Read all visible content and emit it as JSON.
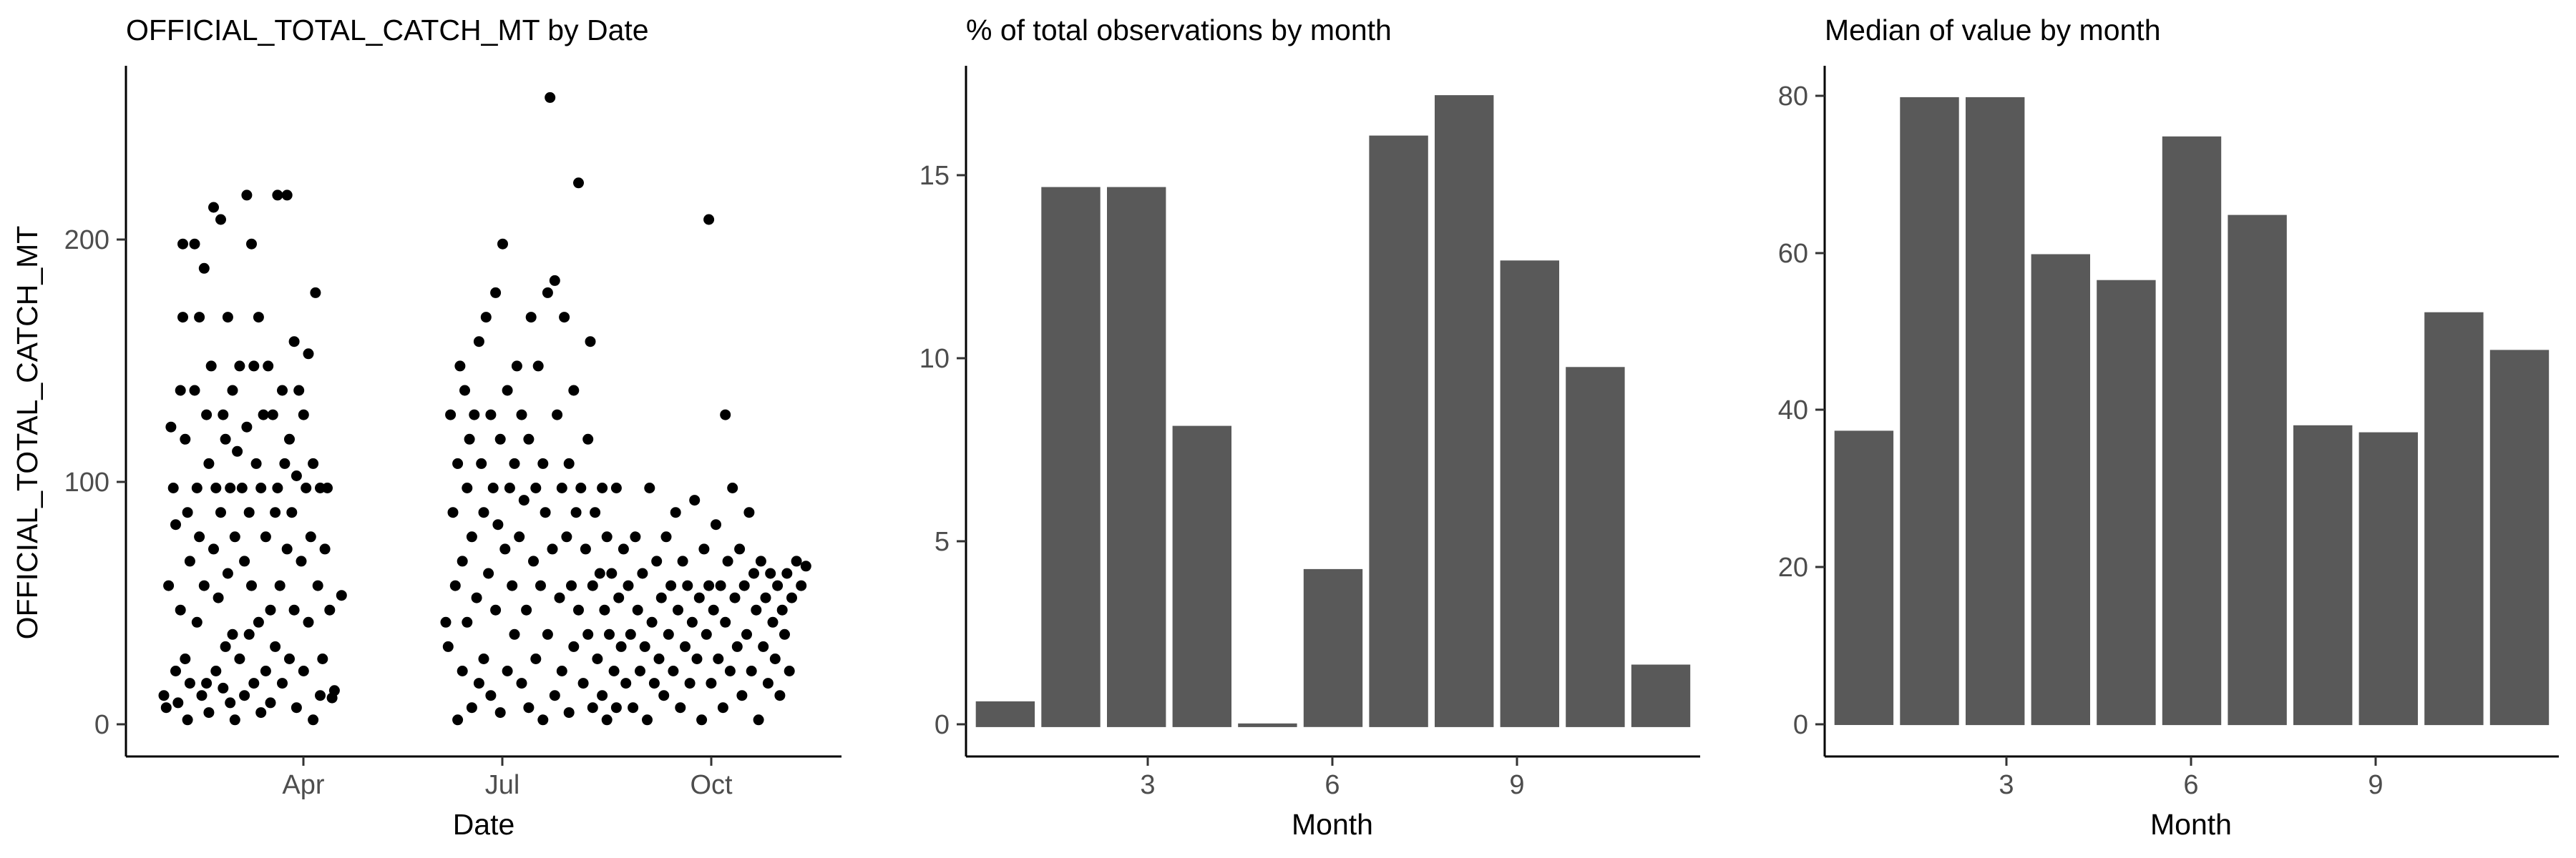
{
  "chart_data": [
    {
      "type": "scatter",
      "title": "OFFICIAL_TOTAL_CATCH_MT by Date",
      "xlabel": "Date",
      "ylabel": "OFFICIAL_TOTAL_CATCH_MT",
      "x_ticks": [
        {
          "label": "Apr",
          "value": "2000-04-01"
        },
        {
          "label": "Jul",
          "value": "2000-07-01"
        },
        {
          "label": "Oct",
          "value": "2000-10-01"
        }
      ],
      "xlim": [
        "2000-02-01",
        "2000-11-29"
      ],
      "y_ticks": [
        0,
        100,
        200
      ],
      "ylim": [
        -10,
        273
      ],
      "grid": false,
      "marker_color": "#000000",
      "points": [
        [
          "2000-02-17",
          15
        ],
        [
          "2000-02-18",
          10
        ],
        [
          "2000-02-19",
          60
        ],
        [
          "2000-02-20",
          125
        ],
        [
          "2000-02-21",
          100
        ],
        [
          "2000-02-22",
          85
        ],
        [
          "2000-02-22",
          25
        ],
        [
          "2000-02-23",
          12
        ],
        [
          "2000-02-24",
          140
        ],
        [
          "2000-02-24",
          50
        ],
        [
          "2000-02-25",
          200
        ],
        [
          "2000-02-25",
          170
        ],
        [
          "2000-02-26",
          120
        ],
        [
          "2000-02-26",
          30
        ],
        [
          "2000-02-27",
          90
        ],
        [
          "2000-02-27",
          5
        ],
        [
          "2000-02-28",
          70
        ],
        [
          "2000-02-28",
          20
        ],
        [
          "2000-03-01",
          200
        ],
        [
          "2000-03-01",
          140
        ],
        [
          "2000-03-02",
          100
        ],
        [
          "2000-03-02",
          45
        ],
        [
          "2000-03-03",
          170
        ],
        [
          "2000-03-03",
          80
        ],
        [
          "2000-03-04",
          15
        ],
        [
          "2000-03-05",
          190
        ],
        [
          "2000-03-05",
          60
        ],
        [
          "2000-03-06",
          130
        ],
        [
          "2000-03-06",
          20
        ],
        [
          "2000-03-07",
          110
        ],
        [
          "2000-03-07",
          8
        ],
        [
          "2000-03-08",
          150
        ],
        [
          "2000-03-09",
          215
        ],
        [
          "2000-03-09",
          75
        ],
        [
          "2000-03-10",
          100
        ],
        [
          "2000-03-10",
          25
        ],
        [
          "2000-03-11",
          55
        ],
        [
          "2000-03-12",
          210
        ],
        [
          "2000-03-12",
          90
        ],
        [
          "2000-03-13",
          130
        ],
        [
          "2000-03-13",
          18
        ],
        [
          "2000-03-14",
          120
        ],
        [
          "2000-03-14",
          35
        ],
        [
          "2000-03-15",
          170
        ],
        [
          "2000-03-15",
          65
        ],
        [
          "2000-03-16",
          100
        ],
        [
          "2000-03-16",
          12
        ],
        [
          "2000-03-17",
          140
        ],
        [
          "2000-03-17",
          40
        ],
        [
          "2000-03-18",
          80
        ],
        [
          "2000-03-18",
          5
        ],
        [
          "2000-03-19",
          115
        ],
        [
          "2000-03-20",
          150
        ],
        [
          "2000-03-20",
          30
        ],
        [
          "2000-03-21",
          100
        ],
        [
          "2000-03-22",
          70
        ],
        [
          "2000-03-22",
          15
        ],
        [
          "2000-03-23",
          220
        ],
        [
          "2000-03-23",
          125
        ],
        [
          "2000-03-24",
          90
        ],
        [
          "2000-03-24",
          40
        ],
        [
          "2000-03-25",
          200
        ],
        [
          "2000-03-25",
          60
        ],
        [
          "2000-03-26",
          150
        ],
        [
          "2000-03-26",
          20
        ],
        [
          "2000-03-27",
          110
        ],
        [
          "2000-03-28",
          170
        ],
        [
          "2000-03-28",
          45
        ],
        [
          "2000-03-29",
          100
        ],
        [
          "2000-03-29",
          8
        ],
        [
          "2000-03-30",
          130
        ],
        [
          "2000-03-31",
          80
        ],
        [
          "2000-03-31",
          25
        ],
        [
          "2000-04-01",
          150
        ],
        [
          "2000-04-02",
          50
        ],
        [
          "2000-04-02",
          12
        ],
        [
          "2000-04-03",
          130
        ],
        [
          "2000-04-04",
          90
        ],
        [
          "2000-04-04",
          35
        ],
        [
          "2000-04-05",
          220
        ],
        [
          "2000-04-05",
          100
        ],
        [
          "2000-04-06",
          60
        ],
        [
          "2000-04-07",
          140
        ],
        [
          "2000-04-07",
          20
        ],
        [
          "2000-04-08",
          110
        ],
        [
          "2000-04-09",
          220
        ],
        [
          "2000-04-09",
          75
        ],
        [
          "2000-04-10",
          120
        ],
        [
          "2000-04-10",
          30
        ],
        [
          "2000-04-11",
          90
        ],
        [
          "2000-04-12",
          160
        ],
        [
          "2000-04-12",
          50
        ],
        [
          "2000-04-13",
          105
        ],
        [
          "2000-04-13",
          10
        ],
        [
          "2000-04-14",
          140
        ],
        [
          "2000-04-15",
          70
        ],
        [
          "2000-04-16",
          130
        ],
        [
          "2000-04-16",
          25
        ],
        [
          "2000-04-17",
          100
        ],
        [
          "2000-04-18",
          155
        ],
        [
          "2000-04-18",
          45
        ],
        [
          "2000-04-19",
          80
        ],
        [
          "2000-04-20",
          110
        ],
        [
          "2000-04-20",
          5
        ],
        [
          "2000-04-21",
          180
        ],
        [
          "2000-04-22",
          60
        ],
        [
          "2000-04-23",
          100
        ],
        [
          "2000-04-23",
          15
        ],
        [
          "2000-04-24",
          30
        ],
        [
          "2000-04-25",
          75
        ],
        [
          "2000-04-26",
          100
        ],
        [
          "2000-04-27",
          50
        ],
        [
          "2000-04-28",
          14
        ],
        [
          "2000-04-29",
          17
        ],
        [
          "2000-05-02",
          56
        ],
        [
          "2000-06-15",
          45
        ],
        [
          "2000-06-16",
          35
        ],
        [
          "2000-06-17",
          130
        ],
        [
          "2000-06-18",
          90
        ],
        [
          "2000-06-19",
          60
        ],
        [
          "2000-06-20",
          110
        ],
        [
          "2000-06-20",
          5
        ],
        [
          "2000-06-21",
          150
        ],
        [
          "2000-06-22",
          70
        ],
        [
          "2000-06-22",
          25
        ],
        [
          "2000-06-23",
          140
        ],
        [
          "2000-06-24",
          100
        ],
        [
          "2000-06-24",
          45
        ],
        [
          "2000-06-25",
          120
        ],
        [
          "2000-06-26",
          80
        ],
        [
          "2000-06-26",
          10
        ],
        [
          "2000-06-27",
          130
        ],
        [
          "2000-06-28",
          55
        ],
        [
          "2000-06-29",
          160
        ],
        [
          "2000-06-29",
          20
        ],
        [
          "2000-06-30",
          110
        ],
        [
          "2000-07-01",
          90
        ],
        [
          "2000-07-01",
          30
        ],
        [
          "2000-07-02",
          170
        ],
        [
          "2000-07-03",
          65
        ],
        [
          "2000-07-04",
          130
        ],
        [
          "2000-07-04",
          15
        ],
        [
          "2000-07-05",
          100
        ],
        [
          "2000-07-06",
          180
        ],
        [
          "2000-07-06",
          50
        ],
        [
          "2000-07-07",
          85
        ],
        [
          "2000-07-08",
          120
        ],
        [
          "2000-07-08",
          8
        ],
        [
          "2000-07-09",
          200
        ],
        [
          "2000-07-10",
          75
        ],
        [
          "2000-07-11",
          140
        ],
        [
          "2000-07-11",
          25
        ],
        [
          "2000-07-12",
          100
        ],
        [
          "2000-07-13",
          60
        ],
        [
          "2000-07-14",
          110
        ],
        [
          "2000-07-14",
          40
        ],
        [
          "2000-07-15",
          150
        ],
        [
          "2000-07-16",
          80
        ],
        [
          "2000-07-17",
          130
        ],
        [
          "2000-07-17",
          20
        ],
        [
          "2000-07-18",
          95
        ],
        [
          "2000-07-19",
          50
        ],
        [
          "2000-07-20",
          120
        ],
        [
          "2000-07-20",
          10
        ],
        [
          "2000-07-21",
          170
        ],
        [
          "2000-07-22",
          70
        ],
        [
          "2000-07-23",
          100
        ],
        [
          "2000-07-23",
          30
        ],
        [
          "2000-07-24",
          150
        ],
        [
          "2000-07-25",
          60
        ],
        [
          "2000-07-26",
          110
        ],
        [
          "2000-07-26",
          5
        ],
        [
          "2000-07-27",
          90
        ],
        [
          "2000-07-28",
          180
        ],
        [
          "2000-07-28",
          40
        ],
        [
          "2000-07-29",
          260
        ],
        [
          "2000-07-30",
          75
        ],
        [
          "2000-07-31",
          185
        ],
        [
          "2000-07-31",
          15
        ],
        [
          "2000-08-01",
          130
        ],
        [
          "2000-08-02",
          55
        ],
        [
          "2000-08-03",
          100
        ],
        [
          "2000-08-03",
          25
        ],
        [
          "2000-08-04",
          170
        ],
        [
          "2000-08-05",
          80
        ],
        [
          "2000-08-06",
          110
        ],
        [
          "2000-08-06",
          8
        ],
        [
          "2000-08-07",
          60
        ],
        [
          "2000-08-08",
          140
        ],
        [
          "2000-08-08",
          35
        ],
        [
          "2000-08-09",
          90
        ],
        [
          "2000-08-10",
          225
        ],
        [
          "2000-08-10",
          50
        ],
        [
          "2000-08-11",
          100
        ],
        [
          "2000-08-12",
          20
        ],
        [
          "2000-08-13",
          75
        ],
        [
          "2000-08-14",
          120
        ],
        [
          "2000-08-14",
          40
        ],
        [
          "2000-08-15",
          160
        ],
        [
          "2000-08-16",
          60
        ],
        [
          "2000-08-16",
          10
        ],
        [
          "2000-08-17",
          90
        ],
        [
          "2000-08-18",
          30
        ],
        [
          "2000-08-19",
          65
        ],
        [
          "2000-08-20",
          100
        ],
        [
          "2000-08-20",
          15
        ],
        [
          "2000-08-21",
          50
        ],
        [
          "2000-08-22",
          80
        ],
        [
          "2000-08-22",
          5
        ],
        [
          "2000-08-23",
          40
        ],
        [
          "2000-08-24",
          65
        ],
        [
          "2000-08-25",
          25
        ],
        [
          "2000-08-26",
          100
        ],
        [
          "2000-08-26",
          10
        ],
        [
          "2000-08-27",
          55
        ],
        [
          "2000-08-28",
          35
        ],
        [
          "2000-08-29",
          75
        ],
        [
          "2000-08-30",
          20
        ],
        [
          "2000-08-31",
          60
        ],
        [
          "2000-09-01",
          40
        ],
        [
          "2000-09-02",
          10
        ],
        [
          "2000-09-03",
          80
        ],
        [
          "2000-09-04",
          50
        ],
        [
          "2000-09-05",
          25
        ],
        [
          "2000-09-06",
          65
        ],
        [
          "2000-09-07",
          35
        ],
        [
          "2000-09-08",
          5
        ],
        [
          "2000-09-09",
          100
        ],
        [
          "2000-09-10",
          45
        ],
        [
          "2000-09-11",
          20
        ],
        [
          "2000-09-12",
          70
        ],
        [
          "2000-09-13",
          30
        ],
        [
          "2000-09-14",
          55
        ],
        [
          "2000-09-15",
          15
        ],
        [
          "2000-09-16",
          80
        ],
        [
          "2000-09-17",
          40
        ],
        [
          "2000-09-18",
          60
        ],
        [
          "2000-09-19",
          25
        ],
        [
          "2000-09-20",
          90
        ],
        [
          "2000-09-21",
          50
        ],
        [
          "2000-09-22",
          10
        ],
        [
          "2000-09-23",
          70
        ],
        [
          "2000-09-24",
          35
        ],
        [
          "2000-09-25",
          60
        ],
        [
          "2000-09-26",
          20
        ],
        [
          "2000-09-27",
          45
        ],
        [
          "2000-09-28",
          95
        ],
        [
          "2000-09-29",
          30
        ],
        [
          "2000-09-30",
          55
        ],
        [
          "2000-10-01",
          5
        ],
        [
          "2000-10-02",
          75
        ],
        [
          "2000-10-03",
          40
        ],
        [
          "2000-10-04",
          210
        ],
        [
          "2000-10-04",
          60
        ],
        [
          "2000-10-05",
          20
        ],
        [
          "2000-10-06",
          50
        ],
        [
          "2000-10-07",
          85
        ],
        [
          "2000-10-08",
          30
        ],
        [
          "2000-10-09",
          60
        ],
        [
          "2000-10-10",
          10
        ],
        [
          "2000-10-11",
          130
        ],
        [
          "2000-10-11",
          45
        ],
        [
          "2000-10-12",
          70
        ],
        [
          "2000-10-13",
          25
        ],
        [
          "2000-10-14",
          100
        ],
        [
          "2000-10-15",
          55
        ],
        [
          "2000-10-16",
          35
        ],
        [
          "2000-10-17",
          75
        ],
        [
          "2000-10-18",
          15
        ],
        [
          "2000-10-19",
          60
        ],
        [
          "2000-10-20",
          40
        ],
        [
          "2000-10-21",
          90
        ],
        [
          "2000-10-22",
          25
        ],
        [
          "2000-10-23",
          65
        ],
        [
          "2000-10-24",
          50
        ],
        [
          "2000-10-25",
          5
        ],
        [
          "2000-10-26",
          70
        ],
        [
          "2000-10-27",
          35
        ],
        [
          "2000-10-28",
          55
        ],
        [
          "2000-10-29",
          20
        ],
        [
          "2000-10-30",
          65
        ],
        [
          "2000-10-31",
          45
        ],
        [
          "2000-11-01",
          30
        ],
        [
          "2000-11-02",
          60
        ],
        [
          "2000-11-03",
          15
        ],
        [
          "2000-11-04",
          50
        ],
        [
          "2000-11-05",
          40
        ],
        [
          "2000-11-06",
          65
        ],
        [
          "2000-11-07",
          25
        ],
        [
          "2000-11-08",
          55
        ],
        [
          "2000-11-10",
          70
        ],
        [
          "2000-11-12",
          60
        ],
        [
          "2000-11-14",
          68
        ]
      ]
    },
    {
      "type": "bar",
      "title": "% of total observations by month",
      "xlabel": "Month",
      "ylabel": "",
      "categories": [
        1,
        2,
        3,
        4,
        5,
        6,
        7,
        8,
        9,
        10,
        11
      ],
      "x_ticks": [
        3,
        6,
        9
      ],
      "values": [
        0.7,
        14.7,
        14.7,
        8.2,
        0.1,
        4.3,
        16.1,
        17.2,
        12.7,
        9.8,
        1.7
      ],
      "y_ticks": [
        0,
        5,
        10,
        15
      ],
      "ylim": [
        -0.8,
        18
      ],
      "grid": false,
      "bar_color": "#595959"
    },
    {
      "type": "bar",
      "title": "Median of value by month",
      "xlabel": "Month",
      "ylabel": "",
      "categories": [
        1,
        2,
        3,
        4,
        5,
        6,
        7,
        8,
        9,
        10,
        11
      ],
      "x_ticks": [
        3,
        6,
        9
      ],
      "values": [
        37.5,
        80,
        80,
        60,
        56.7,
        75,
        65,
        38.2,
        37.3,
        52.6,
        47.8
      ],
      "y_ticks": [
        0,
        20,
        40,
        60,
        80
      ],
      "ylim": [
        -4,
        84
      ],
      "grid": false,
      "bar_color": "#595959"
    }
  ]
}
